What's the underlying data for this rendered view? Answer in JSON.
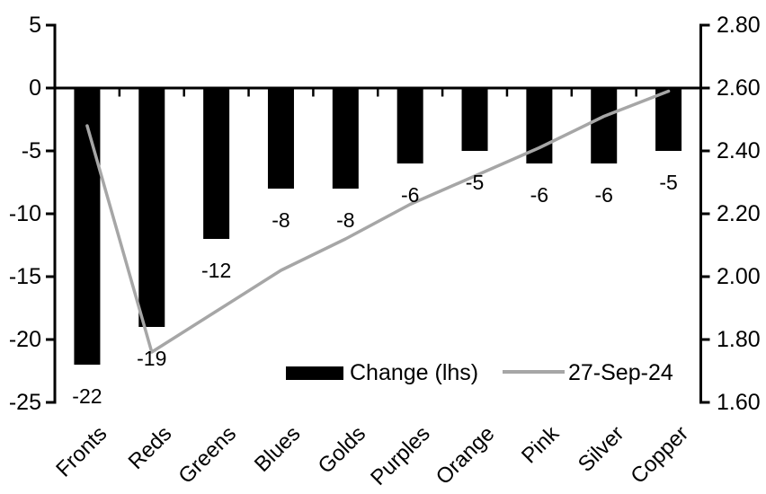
{
  "chart_data": {
    "type": "combo",
    "title": "",
    "categories": [
      "Fronts",
      "Reds",
      "Greens",
      "Blues",
      "Golds",
      "Purples",
      "Orange",
      "Pink",
      "Silver",
      "Copper"
    ],
    "series": [
      {
        "name": "Change (lhs)",
        "type": "bar",
        "axis": "left",
        "color": "#000000",
        "values": [
          -22,
          -19,
          -12,
          -8,
          -8,
          -6,
          -5,
          -6,
          -6,
          -5
        ],
        "data_labels": [
          "-22",
          "-19",
          "-12",
          "-8",
          "-8",
          "-6",
          "-5",
          "-6",
          "-6",
          "-5"
        ]
      },
      {
        "name": "27-Sep-24",
        "type": "line",
        "axis": "right",
        "color": "#a6a6a6",
        "values": [
          2.48,
          1.76,
          1.89,
          2.02,
          2.12,
          2.23,
          2.32,
          2.41,
          2.51,
          2.59
        ]
      }
    ],
    "left_axis": {
      "min": -25,
      "max": 5,
      "step": 5,
      "tick_labels": [
        "5",
        "0",
        "-5",
        "-10",
        "-15",
        "-20",
        "-25"
      ]
    },
    "right_axis": {
      "min": 1.6,
      "max": 2.8,
      "step": 0.2,
      "tick_labels": [
        "2.80",
        "2.60",
        "2.40",
        "2.20",
        "2.00",
        "1.80",
        "1.60"
      ]
    },
    "grid": false,
    "legend_position": "bottom-center-inside",
    "background_color": "#ffffff",
    "axis_color": "#000000"
  }
}
